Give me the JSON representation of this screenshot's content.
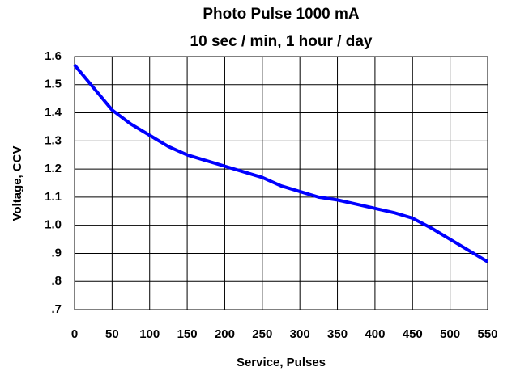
{
  "chart_data": {
    "type": "line",
    "title": "Photo Pulse 1000 mA",
    "subtitle": "10 sec / min, 1 hour / day",
    "x_label": "Service, Pulses",
    "y_label": "Voltage, CCV",
    "x": [
      0,
      25,
      50,
      75,
      100,
      125,
      150,
      175,
      200,
      225,
      250,
      275,
      300,
      325,
      350,
      375,
      400,
      425,
      450,
      475,
      500,
      525,
      550
    ],
    "series": [
      {
        "name": "CCV",
        "color": "#0000ff",
        "values": [
          1.57,
          1.49,
          1.41,
          1.36,
          1.32,
          1.28,
          1.25,
          1.23,
          1.21,
          1.19,
          1.17,
          1.14,
          1.12,
          1.1,
          1.09,
          1.075,
          1.06,
          1.045,
          1.025,
          0.99,
          0.95,
          0.91,
          0.87
        ]
      }
    ],
    "xlim": [
      0,
      550
    ],
    "xticks": [
      0,
      50,
      100,
      150,
      200,
      250,
      300,
      350,
      400,
      450,
      500,
      550
    ],
    "ylim": [
      0.7,
      1.6
    ],
    "yticks": [
      {
        "value": 0.7,
        "label": ".7"
      },
      {
        "value": 0.8,
        "label": ".8"
      },
      {
        "value": 0.9,
        "label": ".9"
      },
      {
        "value": 1.0,
        "label": "1.0"
      },
      1.1,
      1.2,
      1.3,
      1.4,
      1.5,
      1.6
    ],
    "grid": true
  }
}
